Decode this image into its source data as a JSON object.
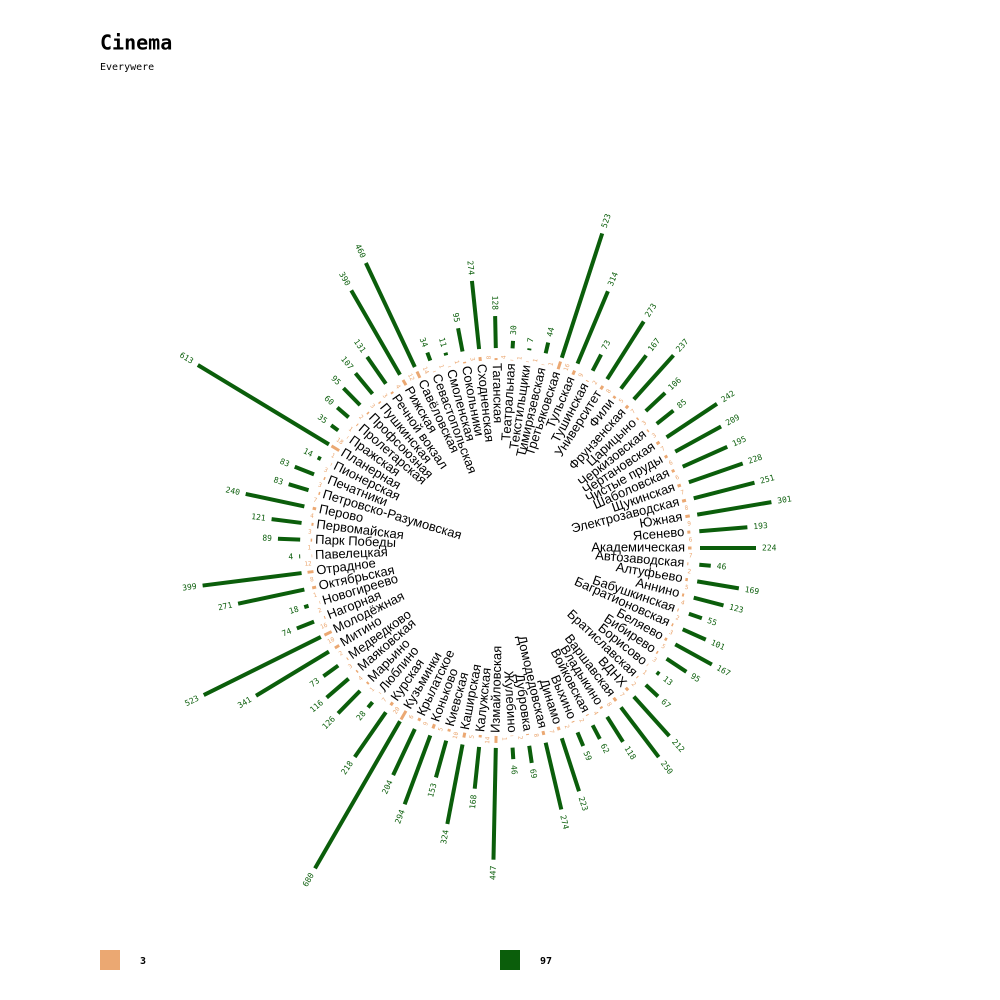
{
  "chart_data": {
    "type": "radial-bar",
    "title": "Cinema",
    "subtitle": "Everywere",
    "categories": [
      "Академическая",
      "Автозаводская",
      "Алтуфьево",
      "Аннино",
      "Бабушкинская",
      "Багратионовская",
      "Беляево",
      "Бибирево",
      "Борисово",
      "Братиславская",
      "ВДНХ",
      "Варшавская",
      "Владыкино",
      "Войковская",
      "Выхино",
      "Динамо",
      "Домодедовская",
      "Дубровка",
      "Жулебино",
      "Измайловская",
      "Калужская",
      "Каширская",
      "Киевская",
      "Коньково",
      "Крылатское",
      "Кузьминки",
      "Курская",
      "Люблино",
      "Марьино",
      "Маяковская",
      "Медведково",
      "Митино",
      "Молодёжная",
      "Нагорная",
      "Новогиреево",
      "Октябрьская",
      "Отрадное",
      "Павелецкая",
      "Парк Победы",
      "Первомайская",
      "Перово",
      "Петровско-Разумовская",
      "Печатники",
      "Пионерская",
      "Планерная",
      "Пражская",
      "Пролетарская",
      "Профсоюзная",
      "Пушкинская",
      "Речной вокзал",
      "Рижская",
      "Савёловская",
      "Севастопольская",
      "Смоленская",
      "Сокольники",
      "Сходненская",
      "Таганская",
      "Театральная",
      "Текстильщики",
      "Тимирязевская",
      "Третьяковская",
      "Тульская",
      "Тушинская",
      "Университет",
      "Фили",
      "Фрунзенская",
      "Царицыно",
      "Черкизовская",
      "Чертановская",
      "Чистые пруды",
      "Шаболовская",
      "Щукинская",
      "Электрозаводская",
      "Южная",
      "Ясенево"
    ],
    "series": [
      {
        "name": "3",
        "color": "#eba872",
        "values": [
          7,
          2,
          5,
          4,
          2,
          3,
          5,
          3,
          1,
          2,
          7,
          8,
          4,
          2,
          2,
          7,
          8,
          2,
          1,
          14,
          5,
          10,
          5,
          9,
          6,
          20,
          7,
          1,
          4,
          3,
          2,
          10,
          16,
          2,
          1,
          8,
          12,
          1,
          3,
          4,
          7,
          3,
          3,
          1,
          18,
          1,
          2,
          3,
          3,
          4,
          12,
          14,
          1,
          1,
          3,
          8,
          4,
          1,
          1,
          1,
          16,
          9,
          2,
          8,
          5,
          7,
          3,
          3,
          7,
          6,
          6,
          7,
          8,
          9,
          6
        ]
      },
      {
        "name": "97",
        "color": "#0b5e0b",
        "values": [
          224,
          46,
          169,
          123,
          55,
          101,
          167,
          95,
          13,
          67,
          212,
          250,
          118,
          62,
          59,
          223,
          274,
          69,
          46,
          447,
          168,
          324,
          153,
          294,
          204,
          680,
          218,
          28,
          126,
          116,
          73,
          341,
          523,
          74,
          18,
          271,
          399,
          4,
          89,
          121,
          240,
          83,
          83,
          14,
          613,
          35,
          60,
          95,
          107,
          131,
          390,
          460,
          34,
          11,
          95,
          274,
          128,
          30,
          7,
          44,
          523,
          314,
          73,
          273,
          167,
          237,
          106,
          85,
          242,
          209,
          195,
          228,
          251,
          301,
          193
        ]
      }
    ]
  }
}
